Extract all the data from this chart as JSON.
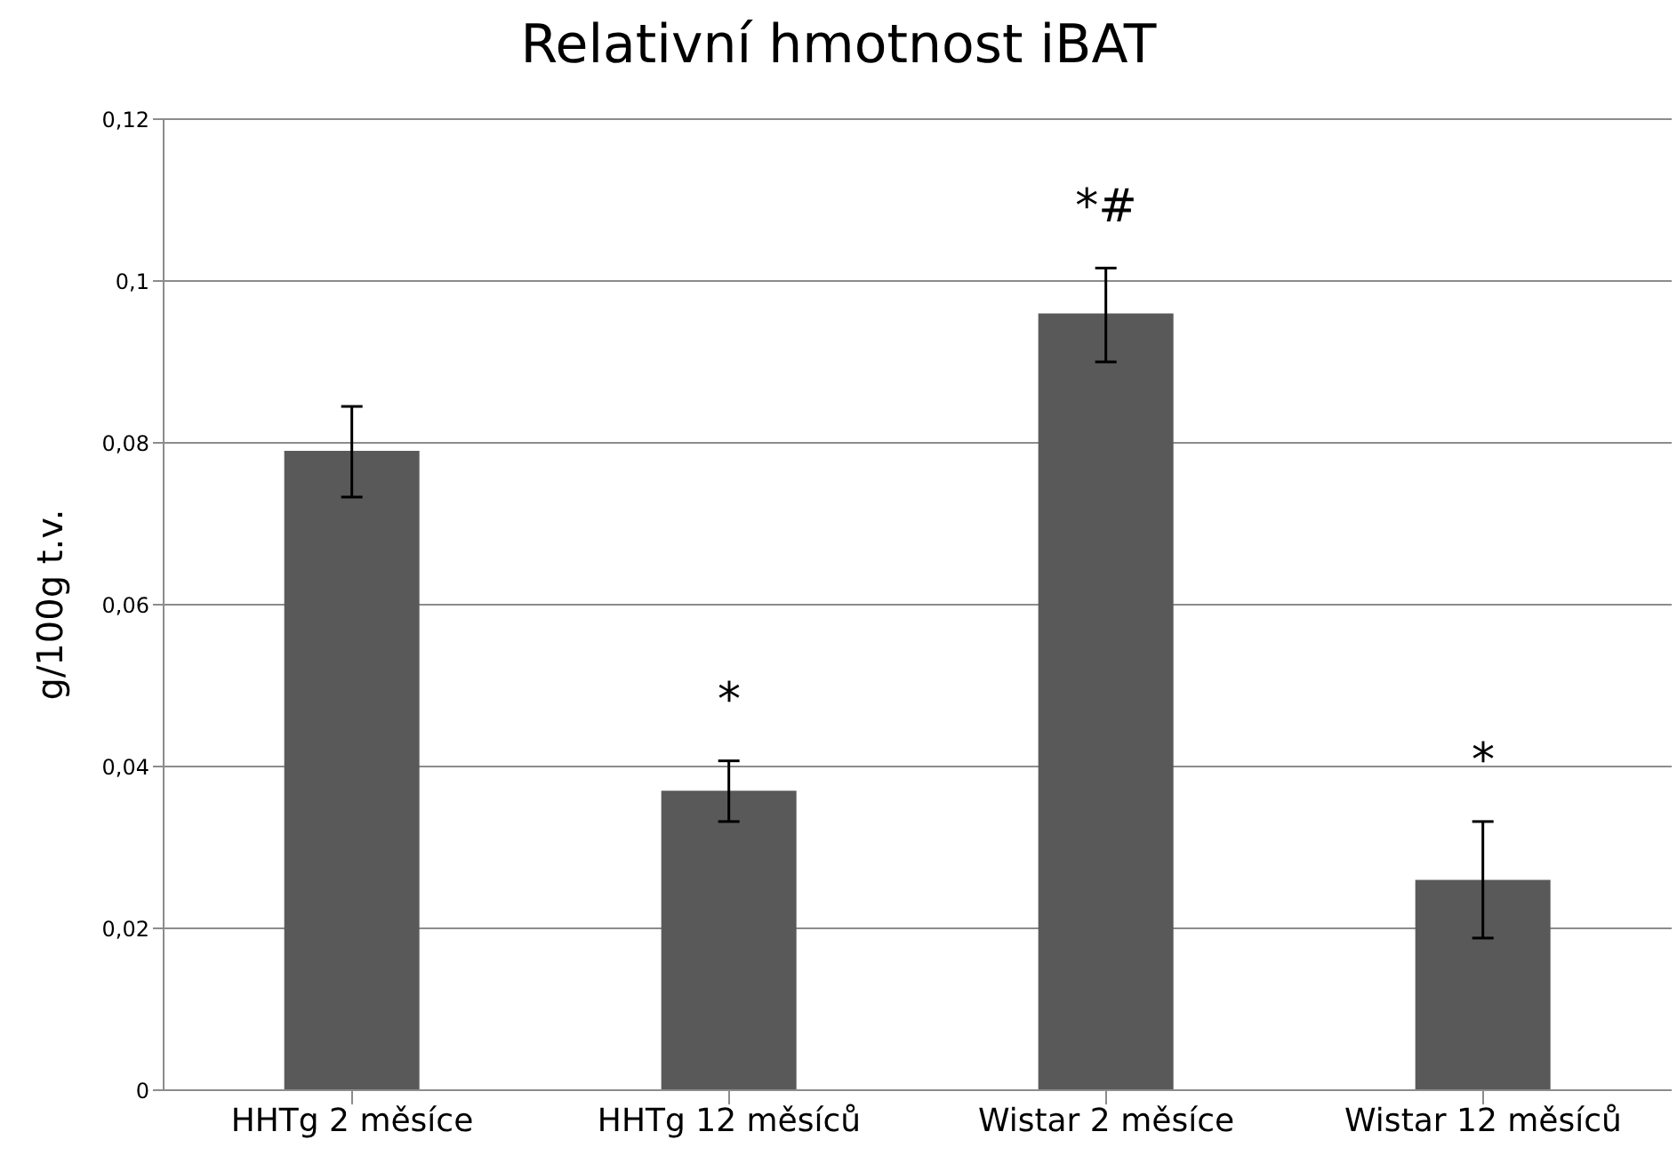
{
  "chart_data": {
    "type": "bar",
    "title": "Relativní hmotnost iBAT",
    "ylabel": "g/100g t.v.",
    "categories": [
      "HHTg 2 měsíce",
      "HHTg 12 měsíců",
      "Wistar 2 měsíce",
      "Wistar 12 měsíců"
    ],
    "values": [
      0.079,
      0.037,
      0.096,
      0.026
    ],
    "errors": [
      [
        0.0733,
        0.0845
      ],
      [
        0.0332,
        0.0407
      ],
      [
        0.09,
        0.1016
      ],
      [
        0.0188,
        0.0332
      ]
    ],
    "color": "#595959",
    "ylim": [
      0,
      0.12
    ],
    "yticks": [
      0,
      {
        "value": 0.02,
        "label": "0,02"
      },
      {
        "value": 0.04,
        "label": "0,04"
      },
      {
        "value": 0.06,
        "label": "0,06"
      },
      {
        "value": 0.08,
        "label": "0,08"
      },
      {
        "value": 0.1,
        "label": "0,1"
      },
      {
        "value": 0.12,
        "label": "0,12"
      }
    ],
    "grid": "y",
    "annotations": [
      {
        "text": "*",
        "x": "HHTg 12 měsíců",
        "y": 0.0407
      },
      {
        "text": "*#",
        "x": "Wistar 2 měsíce",
        "y": 0.1016
      },
      {
        "text": "*",
        "x": "Wistar 12 měsíců",
        "y": 0.0332
      }
    ]
  }
}
